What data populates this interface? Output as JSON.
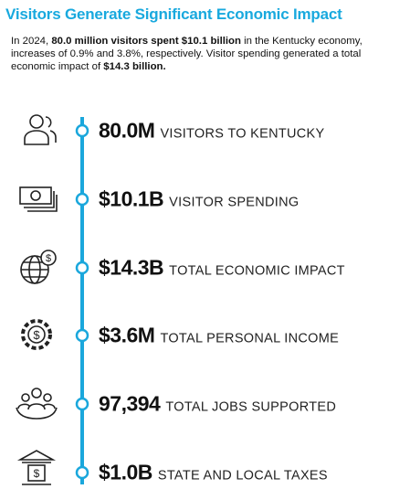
{
  "header": {
    "title": "Visitors Generate Significant Economic Impact"
  },
  "intro": {
    "segments": [
      {
        "text": "In 2024, ",
        "bold": false
      },
      {
        "text": "80.0 million visitors spent $10.1 billion",
        "bold": true
      },
      {
        "text": " in the Kentucky economy, increases of 0.9% and 3.8%, respectively. Visitor spending generated a total economic impact of ",
        "bold": false
      },
      {
        "text": "$14.3 billion.",
        "bold": true
      }
    ]
  },
  "items": [
    {
      "value": "80.0M",
      "label": "VISITORS TO KENTUCKY"
    },
    {
      "value": "$10.1B",
      "label": "VISITOR SPENDING"
    },
    {
      "value": "$14.3B",
      "label": "TOTAL ECONOMIC IMPACT"
    },
    {
      "value": "$3.6M",
      "label": "TOTAL PERSONAL INCOME"
    },
    {
      "value": "97,394",
      "label": "TOTAL JOBS SUPPORTED"
    },
    {
      "value": "$1.0B",
      "label": "STATE AND LOCAL TAXES"
    }
  ]
}
